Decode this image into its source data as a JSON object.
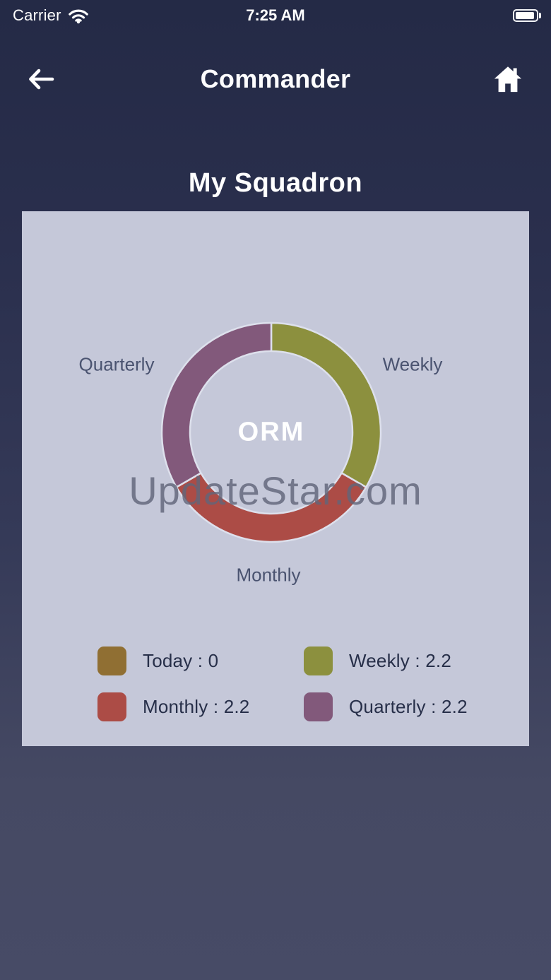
{
  "status_bar": {
    "carrier": "Carrier",
    "time": "7:25 AM"
  },
  "nav": {
    "title": "Commander"
  },
  "page": {
    "heading": "My Squadron"
  },
  "watermark": "UpdateStar.com",
  "chart": {
    "center_label": "ORM",
    "labels": {
      "left": "Quarterly",
      "right": "Weekly",
      "bottom": "Monthly"
    }
  },
  "chart_data": {
    "type": "pie",
    "donut": true,
    "title": "ORM",
    "categories": [
      "Today",
      "Weekly",
      "Monthly",
      "Quarterly"
    ],
    "values": [
      0,
      2.2,
      2.2,
      2.2
    ],
    "colors": [
      "#906f33",
      "#8c903e",
      "#ac4c46",
      "#82597b"
    ],
    "start_angle_deg": 0,
    "direction": "clockwise",
    "legend_position": "bottom"
  },
  "legend": {
    "items": [
      {
        "label": "Today : 0",
        "color": "#906f33"
      },
      {
        "label": "Weekly : 2.2",
        "color": "#8c903e"
      },
      {
        "label": "Monthly : 2.2",
        "color": "#ac4c46"
      },
      {
        "label": "Quarterly : 2.2",
        "color": "#82597b"
      }
    ]
  },
  "colors": {
    "background_top": "#242a46",
    "background_bottom": "#474b66",
    "card": "#c5c8d9",
    "slice_stroke": "#dde0ec",
    "label_text": "#4a5370",
    "legend_text": "#272f49"
  }
}
